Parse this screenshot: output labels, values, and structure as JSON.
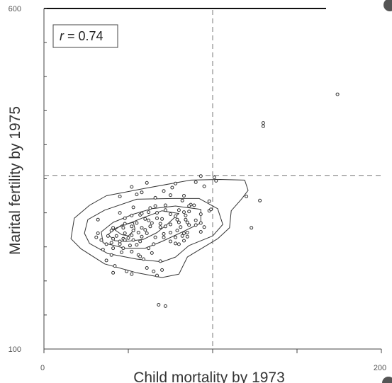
{
  "chart_data": {
    "type": "scatter",
    "title": "",
    "xlabel": "Child mortality by 1973",
    "ylabel": "Marital fertility by 1975",
    "xlim": [
      0,
      200
    ],
    "ylim": [
      100,
      600
    ],
    "x_tick_labels": [
      {
        "value": 0,
        "label": "0"
      },
      {
        "value": 200,
        "label": "200"
      }
    ],
    "y_tick_labels": [
      {
        "value": 600,
        "label": "600"
      },
      {
        "value": 100,
        "label": "100"
      }
    ],
    "x_minor_ticks": [
      0,
      50,
      100,
      150,
      200
    ],
    "y_minor_ticks": [
      100,
      150,
      200,
      250,
      300,
      350,
      400,
      450,
      500,
      550,
      600
    ],
    "annotation": {
      "italic": "r",
      "rest": " = 0.74"
    },
    "reference_lines": {
      "x": 100,
      "y": 355
    },
    "grid": false,
    "points": [
      [
        174,
        474
      ],
      [
        130,
        432
      ],
      [
        130,
        427
      ],
      [
        101,
        352
      ],
      [
        93,
        354
      ],
      [
        102,
        347
      ],
      [
        90,
        345
      ],
      [
        78,
        343
      ],
      [
        61,
        344
      ],
      [
        52,
        338
      ],
      [
        71,
        332
      ],
      [
        58,
        330
      ],
      [
        120,
        324
      ],
      [
        45,
        324
      ],
      [
        75,
        326
      ],
      [
        83,
        325
      ],
      [
        82,
        318
      ],
      [
        98,
        317
      ],
      [
        66,
        310
      ],
      [
        53,
        308
      ],
      [
        63,
        307
      ],
      [
        72,
        311
      ],
      [
        89,
        311
      ],
      [
        72,
        304
      ],
      [
        80,
        304
      ],
      [
        128,
        318
      ],
      [
        52,
        296
      ],
      [
        45,
        300
      ],
      [
        57,
        297
      ],
      [
        75,
        298
      ],
      [
        93,
        298
      ],
      [
        98,
        303
      ],
      [
        62,
        301
      ],
      [
        67,
        300
      ],
      [
        84,
        296
      ],
      [
        78,
        295
      ],
      [
        86,
        302
      ],
      [
        32,
        290
      ],
      [
        48,
        292
      ],
      [
        60,
        291
      ],
      [
        70,
        291
      ],
      [
        80,
        286
      ],
      [
        90,
        289
      ],
      [
        55,
        285
      ],
      [
        64,
        285
      ],
      [
        75,
        283
      ],
      [
        86,
        282
      ],
      [
        47,
        278
      ],
      [
        52,
        280
      ],
      [
        58,
        278
      ],
      [
        63,
        280
      ],
      [
        69,
        279
      ],
      [
        81,
        279
      ],
      [
        95,
        279
      ],
      [
        123,
        278
      ],
      [
        41,
        278
      ],
      [
        32,
        270
      ],
      [
        40,
        274
      ],
      [
        48,
        270
      ],
      [
        52,
        267
      ],
      [
        56,
        271
      ],
      [
        61,
        270
      ],
      [
        71,
        269
      ],
      [
        75,
        271
      ],
      [
        85,
        271
      ],
      [
        38,
        266
      ],
      [
        43,
        266
      ],
      [
        47,
        262
      ],
      [
        53,
        260
      ],
      [
        58,
        265
      ],
      [
        66,
        264
      ],
      [
        71,
        264
      ],
      [
        78,
        264
      ],
      [
        45,
        254
      ],
      [
        48,
        260
      ],
      [
        57,
        258
      ],
      [
        65,
        254
      ],
      [
        37,
        254
      ],
      [
        34,
        260
      ],
      [
        31,
        264
      ],
      [
        75,
        258
      ],
      [
        62,
        248
      ],
      [
        41,
        248
      ],
      [
        46,
        242
      ],
      [
        35,
        246
      ],
      [
        52,
        243
      ],
      [
        40,
        238
      ],
      [
        56,
        238
      ],
      [
        59,
        232
      ],
      [
        37,
        230
      ],
      [
        69,
        229
      ],
      [
        42,
        222
      ],
      [
        61,
        219
      ],
      [
        49,
        214
      ],
      [
        65,
        214
      ],
      [
        67,
        208
      ],
      [
        41,
        212
      ],
      [
        52,
        210
      ],
      [
        70,
        216
      ],
      [
        83,
        259
      ],
      [
        82,
        266
      ],
      [
        79,
        274
      ],
      [
        72,
        280
      ],
      [
        85,
        286
      ],
      [
        58,
        299
      ],
      [
        99,
        305
      ],
      [
        55,
        327
      ],
      [
        76,
        337
      ],
      [
        87,
        312
      ],
      [
        66,
        322
      ],
      [
        95,
        339
      ],
      [
        83,
        301
      ],
      [
        84,
        290
      ],
      [
        48,
        284
      ],
      [
        53,
        274
      ],
      [
        47,
        248
      ],
      [
        64,
        241
      ],
      [
        50,
        263
      ],
      [
        60,
        275
      ],
      [
        62,
        289
      ],
      [
        55,
        253
      ],
      [
        67,
        292
      ],
      [
        40,
        256
      ],
      [
        45,
        258
      ],
      [
        51,
        252
      ],
      [
        80,
        254
      ],
      [
        85,
        265
      ],
      [
        90,
        282
      ],
      [
        93,
        272
      ],
      [
        57,
        236
      ],
      [
        41,
        262
      ],
      [
        83,
        270
      ],
      [
        68,
        165
      ],
      [
        72,
        163
      ],
      [
        69,
        284
      ],
      [
        93,
        285
      ],
      [
        86,
        310
      ],
      [
        79,
        290
      ],
      [
        78,
        255
      ]
    ],
    "contour_lines": [
      [
        [
          55,
          212
        ],
        [
          70,
          205
        ],
        [
          80,
          210
        ],
        [
          85,
          235
        ],
        [
          95,
          250
        ],
        [
          103,
          262
        ],
        [
          110,
          278
        ],
        [
          111,
          303
        ],
        [
          117,
          320
        ],
        [
          121,
          333
        ],
        [
          119,
          348
        ],
        [
          104,
          349
        ],
        [
          87,
          348
        ],
        [
          60,
          336
        ],
        [
          37,
          325
        ],
        [
          27,
          311
        ],
        [
          18,
          292
        ],
        [
          16,
          262
        ],
        [
          22,
          247
        ],
        [
          36,
          225
        ],
        [
          55,
          212
        ]
      ],
      [
        [
          55,
          232
        ],
        [
          70,
          228
        ],
        [
          78,
          235
        ],
        [
          86,
          252
        ],
        [
          100,
          266
        ],
        [
          106,
          283
        ],
        [
          103,
          306
        ],
        [
          92,
          321
        ],
        [
          76,
          321
        ],
        [
          55,
          320
        ],
        [
          36,
          304
        ],
        [
          26,
          290
        ],
        [
          24,
          270
        ],
        [
          27,
          255
        ],
        [
          38,
          240
        ],
        [
          55,
          232
        ]
      ],
      [
        [
          48,
          248
        ],
        [
          60,
          248
        ],
        [
          70,
          258
        ],
        [
          83,
          273
        ],
        [
          93,
          285
        ],
        [
          93,
          305
        ],
        [
          78,
          310
        ],
        [
          64,
          306
        ],
        [
          53,
          298
        ],
        [
          41,
          286
        ],
        [
          34,
          272
        ],
        [
          35,
          256
        ],
        [
          48,
          248
        ]
      ],
      [
        [
          49,
          258
        ],
        [
          59,
          261
        ],
        [
          67,
          271
        ],
        [
          73,
          283
        ],
        [
          80,
          299
        ],
        [
          70,
          303
        ],
        [
          59,
          293
        ],
        [
          52,
          286
        ],
        [
          43,
          278
        ],
        [
          38,
          268
        ],
        [
          42,
          259
        ],
        [
          49,
          258
        ]
      ],
      [
        [
          46,
          268
        ],
        [
          50,
          266
        ],
        [
          54,
          276
        ],
        [
          53,
          286
        ],
        [
          46,
          282
        ],
        [
          42,
          275
        ],
        [
          46,
          268
        ]
      ]
    ]
  }
}
